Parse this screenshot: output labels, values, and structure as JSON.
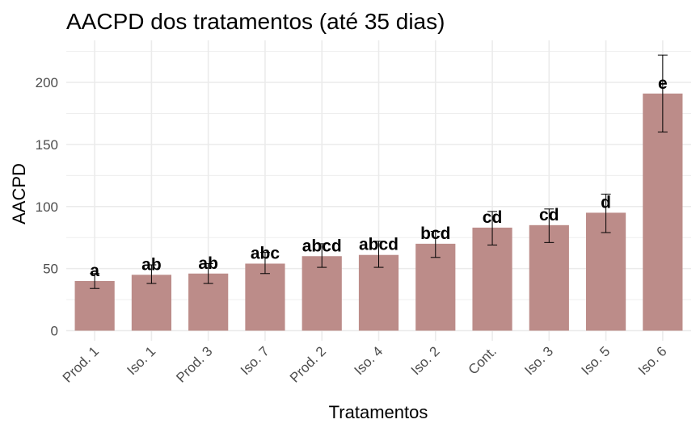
{
  "chart_data": {
    "type": "bar",
    "title": "AACPD dos tratamentos (até 35 dias)",
    "xlabel": "Tratamentos",
    "ylabel": "AACPD",
    "categories": [
      "Prod. 1",
      "Iso. 1",
      "Prod. 3",
      "Iso. 7",
      "Prod. 2",
      "Iso. 4",
      "Iso. 2",
      "Cont.",
      "Iso. 3",
      "Iso. 5",
      "Iso. 6"
    ],
    "values": [
      40,
      45,
      46,
      54,
      60,
      61,
      70,
      83,
      85,
      95,
      191
    ],
    "error_low": [
      34,
      38,
      38,
      46,
      51,
      51,
      59,
      69,
      71,
      79,
      160
    ],
    "error_high": [
      46,
      53,
      54,
      63,
      70,
      72,
      80,
      96,
      98,
      110,
      222
    ],
    "group_labels": [
      "a",
      "ab",
      "ab",
      "abc",
      "abcd",
      "abcd",
      "bcd",
      "cd",
      "cd",
      "d",
      "e"
    ],
    "yticks": [
      0,
      50,
      100,
      150,
      200
    ],
    "ylim": [
      -8,
      232
    ],
    "grid": true,
    "bar_color": "#bc8c89",
    "grid_color": "#ebebeb"
  }
}
